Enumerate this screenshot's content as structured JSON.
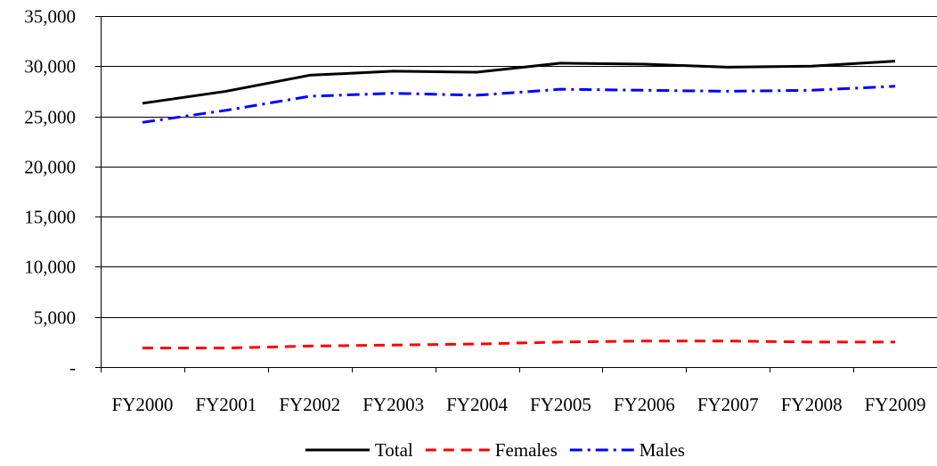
{
  "chart_data": {
    "type": "line",
    "categories": [
      "FY2000",
      "FY2001",
      "FY2002",
      "FY2003",
      "FY2004",
      "FY2005",
      "FY2006",
      "FY2007",
      "FY2008",
      "FY2009"
    ],
    "series": [
      {
        "name": "Total",
        "values": [
          26300,
          27500,
          29100,
          29500,
          29400,
          30300,
          30200,
          29900,
          30000,
          30500
        ],
        "color": "#000000",
        "dash": "solid"
      },
      {
        "name": "Females",
        "values": [
          1900,
          1900,
          2100,
          2200,
          2300,
          2500,
          2600,
          2600,
          2500,
          2500
        ],
        "color": "#ff0000",
        "dash": "dashed"
      },
      {
        "name": "Males",
        "values": [
          24400,
          25600,
          27000,
          27300,
          27100,
          27700,
          27600,
          27500,
          27600,
          28000
        ],
        "color": "#0000ff",
        "dash": "dash-dot"
      }
    ],
    "ylim": [
      0,
      35000
    ],
    "yticks": [
      0,
      5000,
      10000,
      15000,
      20000,
      25000,
      30000,
      35000
    ],
    "ytick_labels": [
      "-",
      "5,000",
      "10,000",
      "15,000",
      "20,000",
      "25,000",
      "30,000",
      "35,000"
    ],
    "title": "",
    "xlabel": "",
    "ylabel": "",
    "grid": "horizontal",
    "legend_position": "bottom"
  }
}
